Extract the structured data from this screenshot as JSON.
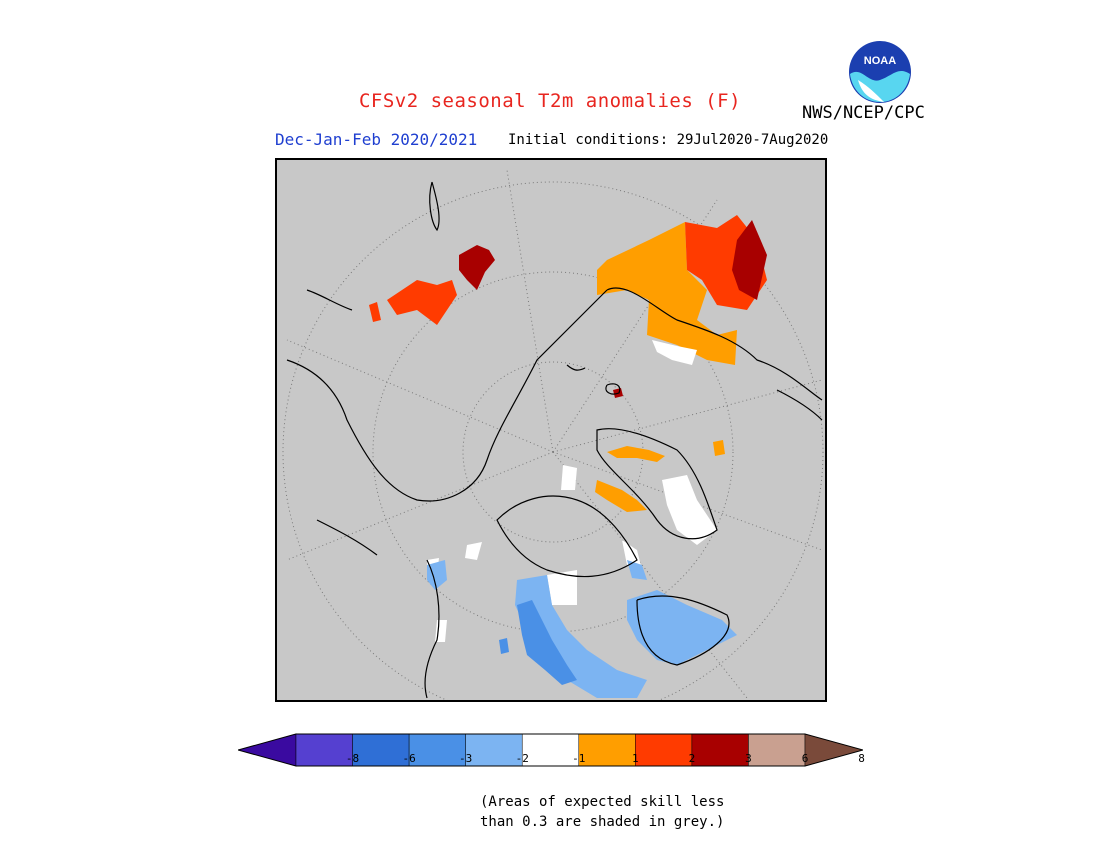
{
  "header": {
    "title": "CFSv2 seasonal T2m anomalies (F)",
    "season": "Dec-Jan-Feb 2020/2021",
    "initial_conditions": "Initial conditions: 29Jul2020-7Aug2020",
    "agency": "NWS/NCEP/CPC",
    "logo_text": "NOAA"
  },
  "map": {
    "projection": "north-polar-stereographic",
    "background_color": "#c8c8c8",
    "coastline_color": "#000000"
  },
  "legend": {
    "ticks": [
      "-8",
      "-6",
      "-3",
      "-2",
      "-1",
      "1",
      "2",
      "3",
      "6",
      "8"
    ],
    "colors": [
      "#3a0aa0",
      "#5540d0",
      "#2f6fd6",
      "#4a90e6",
      "#7cb4f2",
      "#ffffff",
      "#ff9e00",
      "#ff3b00",
      "#a80000",
      "#c9a090",
      "#7a4a3a"
    ]
  },
  "footnote": {
    "line1": "(Areas of expected skill less",
    "line2": "than 0.3 are shaded in grey.)"
  }
}
